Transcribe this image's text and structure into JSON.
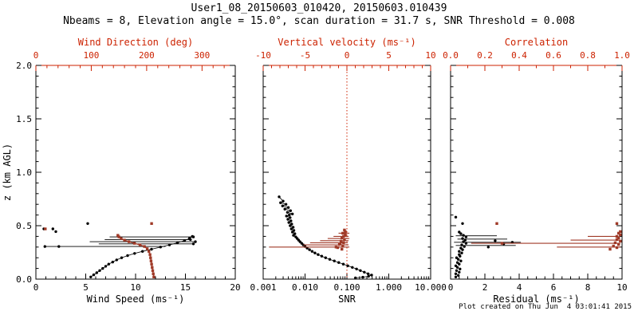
{
  "header": {
    "title": "User1_08_20150603_010420, 20150603.010439",
    "subtitle": "Nbeams = 8, Elevation angle = 15.0°, scan duration = 31.7 s, SNR Threshold = 0.008"
  },
  "footer": {
    "created": "Plot created on Thu Jun  4 03:01:41 2015"
  },
  "colors": {
    "black": "#000000",
    "axis_red": "#cc2200",
    "point_red": "#a03a28"
  },
  "chart_data": [
    {
      "type": "scatter",
      "ylabel": "z (km AGL)",
      "ylim": [
        0,
        2
      ],
      "yticks": [
        0,
        0.5,
        1,
        1.5,
        2
      ],
      "ytick_labels": [
        "0.0",
        "0.5",
        "1.0",
        "1.5",
        "2.0"
      ],
      "yminor": 0.1,
      "xlabel": "Wind Speed (ms⁻¹)",
      "xscale": "linear",
      "xlim": [
        0,
        20
      ],
      "xticks": [
        0,
        5,
        10,
        15,
        20
      ],
      "xtick_labels": [
        "0",
        "5",
        "10",
        "15",
        "20"
      ],
      "xminor": 1,
      "x2label": "Wind Direction (deg)",
      "x2lim": [
        0,
        360
      ],
      "x2ticks": [
        0,
        100,
        200,
        300
      ],
      "x2tick_labels": [
        "0",
        "100",
        "200",
        "300"
      ],
      "x2minor": 20,
      "series": [
        {
          "name": "wind-speed-profile",
          "axis": "x",
          "color": "black",
          "marker": "dot",
          "connect": true,
          "points": [
            [
              5.5,
              0.02
            ],
            [
              5.8,
              0.04
            ],
            [
              6.1,
              0.06
            ],
            [
              6.4,
              0.08
            ],
            [
              6.7,
              0.1
            ],
            [
              7.0,
              0.12
            ],
            [
              7.3,
              0.14
            ],
            [
              7.7,
              0.16
            ],
            [
              8.1,
              0.18
            ],
            [
              8.6,
              0.2
            ],
            [
              9.2,
              0.22
            ],
            [
              9.9,
              0.24
            ],
            [
              10.7,
              0.26
            ],
            [
              11.6,
              0.28
            ],
            [
              12.5,
              0.3
            ],
            [
              13.4,
              0.32
            ],
            [
              14.2,
              0.34
            ],
            [
              14.9,
              0.36
            ],
            [
              15.4,
              0.38
            ],
            [
              15.7,
              0.4
            ]
          ]
        },
        {
          "name": "wind-speed-spread",
          "axis": "x",
          "color": "black",
          "segments": [
            [
              0.9,
              13.0,
              0.305
            ],
            [
              6.3,
              15.8,
              0.33
            ],
            [
              5.4,
              16.0,
              0.35
            ],
            [
              6.9,
              15.5,
              0.37
            ],
            [
              7.4,
              15.8,
              0.395
            ]
          ]
        },
        {
          "name": "wind-speed-outliers",
          "axis": "x",
          "color": "black",
          "marker": "dot",
          "connect": false,
          "points": [
            [
              0.9,
              0.305
            ],
            [
              2.3,
              0.305
            ],
            [
              0.8,
              0.47
            ],
            [
              1.7,
              0.47
            ],
            [
              5.2,
              0.52
            ],
            [
              2.0,
              0.445
            ],
            [
              15.8,
              0.33
            ],
            [
              16.0,
              0.35
            ],
            [
              15.5,
              0.37
            ],
            [
              15.8,
              0.395
            ]
          ]
        },
        {
          "name": "wind-direction-profile",
          "axis": "x2",
          "color": "red",
          "marker": "square",
          "connect": true,
          "points": [
            [
              213,
              0.02
            ],
            [
              212,
              0.05
            ],
            [
              211,
              0.08
            ],
            [
              210,
              0.11
            ],
            [
              209,
              0.14
            ],
            [
              208,
              0.17
            ],
            [
              207,
              0.2
            ],
            [
              206,
              0.23
            ],
            [
              204,
              0.26
            ],
            [
              201,
              0.285
            ],
            [
              196,
              0.305
            ],
            [
              188,
              0.32
            ],
            [
              178,
              0.335
            ],
            [
              168,
              0.35
            ],
            [
              160,
              0.365
            ],
            [
              154,
              0.38
            ],
            [
              150,
              0.395
            ],
            [
              148,
              0.41
            ]
          ]
        },
        {
          "name": "wind-direction-outliers",
          "axis": "x2",
          "color": "red",
          "marker": "square",
          "connect": false,
          "points": [
            [
              17,
              0.47
            ],
            [
              209,
              0.52
            ]
          ]
        }
      ]
    },
    {
      "type": "scatter",
      "ylabel": "",
      "ylim": [
        0,
        2
      ],
      "yticks": [
        0,
        0.5,
        1,
        1.5,
        2
      ],
      "ytick_labels": [],
      "yminor": 0.1,
      "xlabel": "SNR",
      "xscale": "log",
      "xlim": [
        0.001,
        10
      ],
      "xticks": [
        0.001,
        0.01,
        0.1,
        1,
        10
      ],
      "xtick_labels": [
        "0.001",
        "0.010",
        "0.100",
        "1.000",
        "10.000"
      ],
      "x2label": "Vertical velocity (ms⁻¹)",
      "x2lim": [
        -10,
        10
      ],
      "x2ticks": [
        -10,
        -5,
        0,
        5,
        10
      ],
      "x2tick_labels": [
        "-10",
        "-5",
        "0",
        "5",
        "10"
      ],
      "x2minor": 1,
      "refline_x2": 0,
      "series": [
        {
          "name": "snr-profile",
          "axis": "x",
          "color": "black",
          "marker": "dot",
          "connect": true,
          "points": [
            [
              0.0024,
              0.77
            ],
            [
              0.003,
              0.73
            ],
            [
              0.0026,
              0.715
            ],
            [
              0.0035,
              0.7
            ],
            [
              0.0029,
              0.685
            ],
            [
              0.004,
              0.67
            ],
            [
              0.0033,
              0.655
            ],
            [
              0.0045,
              0.64
            ],
            [
              0.0038,
              0.625
            ],
            [
              0.005,
              0.61
            ],
            [
              0.0042,
              0.6
            ],
            [
              0.0036,
              0.59
            ],
            [
              0.0044,
              0.575
            ],
            [
              0.0039,
              0.56
            ],
            [
              0.0046,
              0.545
            ],
            [
              0.0041,
              0.53
            ],
            [
              0.0048,
              0.515
            ],
            [
              0.0044,
              0.5
            ],
            [
              0.0052,
              0.485
            ],
            [
              0.0047,
              0.47
            ],
            [
              0.0054,
              0.455
            ],
            [
              0.005,
              0.44
            ],
            [
              0.0057,
              0.425
            ],
            [
              0.0053,
              0.41
            ],
            [
              0.006,
              0.395
            ],
            [
              0.0065,
              0.38
            ],
            [
              0.007,
              0.365
            ],
            [
              0.0076,
              0.35
            ],
            [
              0.0083,
              0.335
            ],
            [
              0.0091,
              0.32
            ],
            [
              0.01,
              0.305
            ],
            [
              0.0112,
              0.29
            ],
            [
              0.0128,
              0.275
            ],
            [
              0.0148,
              0.26
            ],
            [
              0.0172,
              0.245
            ],
            [
              0.0205,
              0.23
            ],
            [
              0.025,
              0.215
            ],
            [
              0.031,
              0.2
            ],
            [
              0.039,
              0.185
            ],
            [
              0.05,
              0.17
            ],
            [
              0.064,
              0.155
            ],
            [
              0.082,
              0.14
            ],
            [
              0.105,
              0.125
            ],
            [
              0.135,
              0.11
            ],
            [
              0.17,
              0.095
            ],
            [
              0.21,
              0.08
            ],
            [
              0.26,
              0.065
            ],
            [
              0.32,
              0.05
            ],
            [
              0.39,
              0.038
            ],
            [
              0.33,
              0.027
            ],
            [
              0.24,
              0.018
            ],
            [
              0.16,
              0.012
            ]
          ]
        },
        {
          "name": "vertical-velocity-spread",
          "axis": "x2",
          "color": "red",
          "segments": [
            [
              -9.3,
              0.3,
              0.3
            ],
            [
              -5.2,
              0.2,
              0.32
            ],
            [
              -4.4,
              0.1,
              0.34
            ],
            [
              -3.2,
              0.2,
              0.36
            ],
            [
              -2.3,
              0.3,
              0.38
            ],
            [
              -1.6,
              0.2,
              0.4
            ],
            [
              -1.0,
              0.3,
              0.43
            ]
          ]
        },
        {
          "name": "vertical-velocity-points",
          "axis": "x2",
          "color": "red",
          "marker": "square",
          "connect": false,
          "points": [
            [
              -0.3,
              0.46
            ],
            [
              -0.2,
              0.445
            ],
            [
              -0.5,
              0.43
            ],
            [
              -0.2,
              0.415
            ],
            [
              -0.4,
              0.4
            ],
            [
              -0.6,
              0.385
            ],
            [
              -0.3,
              0.37
            ],
            [
              -0.7,
              0.355
            ],
            [
              -0.4,
              0.34
            ],
            [
              -0.9,
              0.325
            ],
            [
              -0.5,
              0.31
            ],
            [
              -1.1,
              0.295
            ],
            [
              -0.6,
              0.28
            ],
            [
              -1.3,
              0.3
            ],
            [
              -0.8,
              0.33
            ]
          ]
        }
      ]
    },
    {
      "type": "scatter",
      "ylabel": "",
      "ylim": [
        0,
        2
      ],
      "yticks": [
        0,
        0.5,
        1,
        1.5,
        2
      ],
      "ytick_labels": [],
      "yminor": 0.1,
      "xlabel": "Residual (ms⁻¹)",
      "xscale": "linear",
      "xlim": [
        0,
        10
      ],
      "xticks": [
        0,
        2,
        4,
        6,
        8,
        10
      ],
      "xtick_labels": [
        "0",
        "2",
        "4",
        "6",
        "8",
        "10"
      ],
      "xminor": 0.5,
      "x2label": "Correlation",
      "x2lim": [
        0,
        1
      ],
      "x2ticks": [
        0,
        0.2,
        0.4,
        0.6,
        0.8,
        1
      ],
      "x2tick_labels": [
        "0.0",
        "0.2",
        "0.4",
        "0.6",
        "0.8",
        "1.0"
      ],
      "x2minor": 0.1,
      "series": [
        {
          "name": "residual-profile",
          "axis": "x",
          "color": "black",
          "marker": "dot",
          "connect": false,
          "points": [
            [
              0.3,
              0.02
            ],
            [
              0.45,
              0.035
            ],
            [
              0.3,
              0.05
            ],
            [
              0.5,
              0.065
            ],
            [
              0.35,
              0.08
            ],
            [
              0.55,
              0.095
            ],
            [
              0.4,
              0.11
            ],
            [
              0.3,
              0.125
            ],
            [
              0.5,
              0.14
            ],
            [
              0.4,
              0.155
            ],
            [
              0.6,
              0.17
            ],
            [
              0.45,
              0.185
            ],
            [
              0.35,
              0.2
            ],
            [
              0.55,
              0.215
            ],
            [
              0.5,
              0.23
            ],
            [
              0.65,
              0.245
            ],
            [
              0.5,
              0.26
            ],
            [
              0.7,
              0.275
            ],
            [
              0.6,
              0.29
            ],
            [
              0.8,
              0.305
            ],
            [
              0.65,
              0.32
            ],
            [
              0.9,
              0.335
            ],
            [
              0.75,
              0.35
            ],
            [
              0.85,
              0.365
            ],
            [
              0.7,
              0.38
            ],
            [
              0.9,
              0.395
            ],
            [
              0.75,
              0.41
            ],
            [
              0.6,
              0.425
            ],
            [
              0.5,
              0.44
            ]
          ]
        },
        {
          "name": "residual-spread",
          "axis": "x",
          "color": "black",
          "segments": [
            [
              0.3,
              3.8,
              0.315
            ],
            [
              0.2,
              4.1,
              0.345
            ],
            [
              0.4,
              3.3,
              0.375
            ],
            [
              0.3,
              2.7,
              0.405
            ]
          ]
        },
        {
          "name": "residual-outliers",
          "axis": "x",
          "color": "black",
          "marker": "dot",
          "connect": false,
          "points": [
            [
              2.2,
              0.3
            ],
            [
              3.1,
              0.33
            ],
            [
              2.6,
              0.36
            ],
            [
              3.6,
              0.345
            ],
            [
              0.7,
              0.52
            ],
            [
              0.3,
              0.58
            ]
          ]
        },
        {
          "name": "correlation-spread",
          "axis": "x2",
          "color": "red",
          "segments": [
            [
              0.62,
              0.99,
              0.3
            ],
            [
              0.12,
              0.99,
              0.335
            ],
            [
              0.7,
              0.99,
              0.365
            ],
            [
              0.8,
              0.98,
              0.4
            ]
          ]
        },
        {
          "name": "correlation-points",
          "axis": "x2",
          "color": "red",
          "marker": "square",
          "connect": false,
          "points": [
            [
              0.93,
              0.28
            ],
            [
              0.97,
              0.295
            ],
            [
              0.95,
              0.31
            ],
            [
              0.98,
              0.325
            ],
            [
              0.96,
              0.34
            ],
            [
              0.99,
              0.355
            ],
            [
              0.97,
              0.37
            ],
            [
              0.98,
              0.385
            ],
            [
              0.97,
              0.4
            ],
            [
              0.99,
              0.415
            ],
            [
              0.98,
              0.43
            ],
            [
              0.99,
              0.445
            ],
            [
              0.3,
              0.335
            ],
            [
              0.27,
              0.52
            ],
            [
              0.97,
              0.52
            ]
          ]
        }
      ]
    }
  ]
}
